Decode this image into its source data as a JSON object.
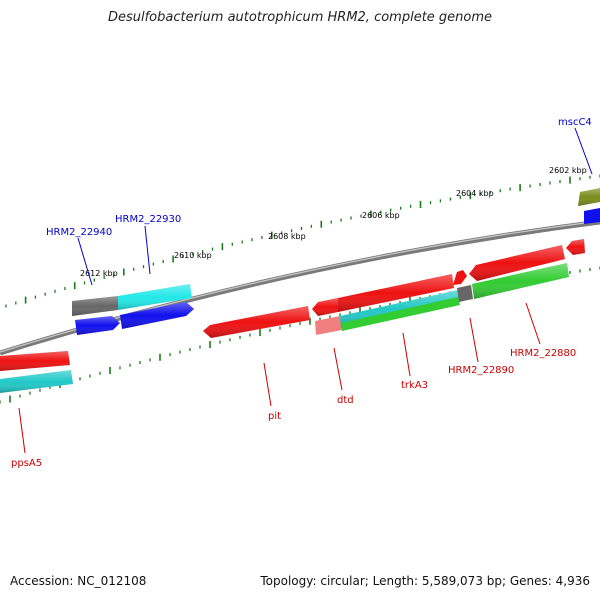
{
  "title": "Desulfobacterium autotrophicum HRM2, complete genome",
  "footer": {
    "accession": "Accession: NC_012108",
    "topology": "Topology: circular; Length: 5,589,073 bp; Genes: 4,936"
  },
  "colors": {
    "backbone": "#808080",
    "tick": "#1a7a1a",
    "tick_label": "#000000",
    "red": "#ee1111",
    "blue": "#1010ee",
    "cyan": "#22e8e8",
    "green": "#33cc33",
    "gray": "#666666",
    "olive": "#7a8c1a",
    "pink": "#f08080",
    "label_red": "#cc0000",
    "label_blue": "#0000cc"
  },
  "tick_labels": {
    "t2612": "2612 kbp",
    "t2610": "2610 kbp",
    "t2608": "2608 kbp",
    "t2606": "2606 kbp",
    "t2604": "2604 kbp",
    "t2602": "2602 kbp"
  },
  "gene_labels": {
    "mscC4": "mscC4",
    "HRM2_22930": "HRM2_22930",
    "HRM2_22940": "HRM2_22940",
    "ppsA5": "ppsA5",
    "pit": "pit",
    "dtd": "dtd",
    "trkA3": "trkA3",
    "HRM2_22890": "HRM2_22890",
    "HRM2_22880": "HRM2_22880"
  }
}
